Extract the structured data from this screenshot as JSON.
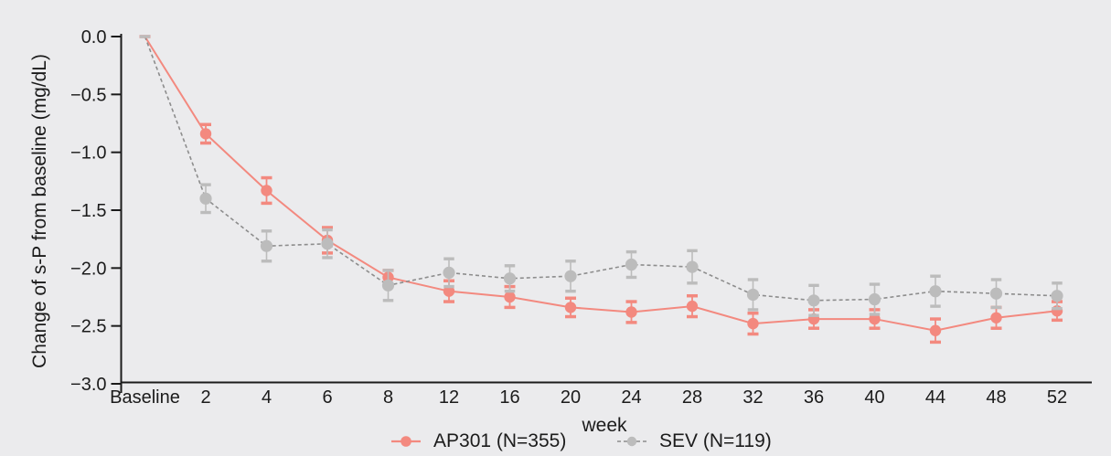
{
  "colors": {
    "background": "#ebebed",
    "axis": "#1b1b1b",
    "text": "#1b1b1b",
    "ap301": "#f3897f",
    "sev_marker": "#bcbcbc",
    "sev_line": "#8d8d8d"
  },
  "chart_data": {
    "type": "line",
    "title": "",
    "ylabel": "Change of s-P from baseline (mg/dL)",
    "xlabel": "week",
    "categories": [
      "Baseline",
      "2",
      "4",
      "6",
      "8",
      "12",
      "16",
      "20",
      "24",
      "28",
      "32",
      "36",
      "40",
      "44",
      "48",
      "52"
    ],
    "y_ticks": [
      "0.0",
      "−0.5",
      "−1.0",
      "−1.5",
      "−2.0",
      "−2.5",
      "−3.0"
    ],
    "y_tick_values": [
      0,
      -0.5,
      -1.0,
      -1.5,
      -2.0,
      -2.5,
      -3.0
    ],
    "ylim": [
      0.03,
      -3.0
    ],
    "grid": false,
    "legend_position": "bottom-center",
    "error_bars": true,
    "series": [
      {
        "name": "AP301",
        "legend_label": "AP301 (N=355)",
        "color": "#f3897f",
        "line_color": "#f3897f",
        "line_style": "solid",
        "marker": "circle",
        "values": [
          0,
          -0.84,
          -1.33,
          -1.76,
          -2.08,
          -2.2,
          -2.25,
          -2.34,
          -2.38,
          -2.33,
          -2.48,
          -2.44,
          -2.44,
          -2.54,
          -2.43,
          -2.37
        ],
        "errors": [
          0,
          0.08,
          0.11,
          0.11,
          0.06,
          0.09,
          0.09,
          0.08,
          0.09,
          0.09,
          0.09,
          0.08,
          0.08,
          0.1,
          0.09,
          0.08
        ]
      },
      {
        "name": "SEV",
        "legend_label": "SEV (N=119)",
        "color": "#bcbcbc",
        "line_color": "#8d8d8d",
        "line_style": "dashed",
        "marker": "circle",
        "values": [
          0,
          -1.4,
          -1.81,
          -1.79,
          -2.15,
          -2.04,
          -2.09,
          -2.07,
          -1.97,
          -1.99,
          -2.23,
          -2.28,
          -2.27,
          -2.2,
          -2.22,
          -2.24
        ],
        "errors": [
          0,
          0.12,
          0.13,
          0.12,
          0.13,
          0.12,
          0.11,
          0.13,
          0.11,
          0.14,
          0.13,
          0.13,
          0.13,
          0.13,
          0.12,
          0.11
        ]
      }
    ]
  }
}
